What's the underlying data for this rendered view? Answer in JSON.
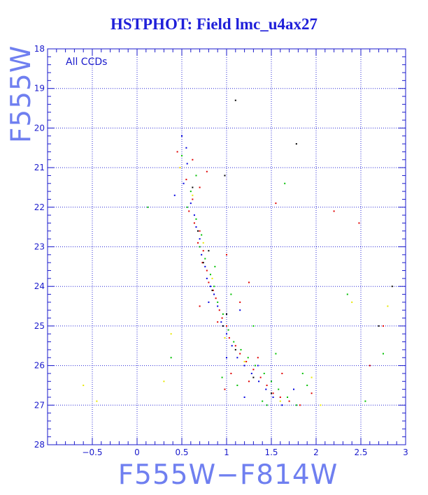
{
  "chart_data": {
    "type": "scatter",
    "title": "HSTPHOT: Field lmc_u4ax27",
    "xlabel": "F555W−F814W",
    "ylabel": "F555W",
    "annotation": "All CCDs",
    "xlim": [
      -1,
      3
    ],
    "ylim": [
      28,
      18
    ],
    "y_inverted": true,
    "grid": true,
    "x_ticks": [
      -0.5,
      0,
      0.5,
      1,
      1.5,
      2,
      2.5,
      3
    ],
    "x_tick_labels": [
      "−0.5",
      "0",
      "0.5",
      "1",
      "1.5",
      "2",
      "2.5",
      "3"
    ],
    "y_ticks": [
      18,
      19,
      20,
      21,
      22,
      23,
      24,
      25,
      26,
      27,
      28
    ],
    "y_tick_labels": [
      "18",
      "19",
      "20",
      "21",
      "22",
      "23",
      "24",
      "25",
      "26",
      "27",
      "28"
    ],
    "colors": {
      "grid": "#2a2ad6",
      "axis": "#1a1acc",
      "title": "#1f1fd9",
      "big_label": "#6f7ff0"
    },
    "series": [
      {
        "color": "#e00000",
        "points": [
          [
            0.45,
            20.6
          ],
          [
            0.62,
            20.8
          ],
          [
            0.78,
            21.1
          ],
          [
            0.55,
            21.3
          ],
          [
            0.7,
            21.5
          ],
          [
            0.62,
            21.8
          ],
          [
            0.58,
            22.1
          ],
          [
            0.64,
            22.4
          ],
          [
            0.7,
            22.6
          ],
          [
            0.68,
            22.9
          ],
          [
            0.74,
            23.1
          ],
          [
            0.73,
            23.4
          ],
          [
            0.78,
            23.6
          ],
          [
            0.8,
            23.9
          ],
          [
            0.85,
            24.1
          ],
          [
            0.88,
            24.3
          ],
          [
            0.92,
            24.6
          ],
          [
            0.95,
            24.8
          ],
          [
            1.0,
            25.0
          ],
          [
            1.03,
            25.3
          ],
          [
            1.1,
            25.5
          ],
          [
            1.15,
            25.7
          ],
          [
            1.22,
            25.9
          ],
          [
            1.3,
            26.1
          ],
          [
            1.38,
            26.3
          ],
          [
            1.45,
            26.5
          ],
          [
            1.52,
            26.7
          ],
          [
            1.6,
            26.8
          ],
          [
            1.7,
            26.9
          ],
          [
            1.82,
            27.0
          ],
          [
            1.25,
            26.4
          ],
          [
            1.05,
            26.2
          ],
          [
            0.98,
            26.6
          ],
          [
            1.35,
            25.8
          ],
          [
            0.9,
            24.9
          ],
          [
            1.15,
            24.4
          ],
          [
            1.25,
            23.9
          ],
          [
            1.0,
            23.2
          ],
          [
            2.2,
            22.1
          ],
          [
            2.48,
            22.4
          ],
          [
            1.55,
            21.9
          ],
          [
            2.75,
            25.0
          ],
          [
            2.6,
            26.0
          ],
          [
            0.48,
            21.0
          ],
          [
            0.7,
            24.5
          ],
          [
            1.62,
            26.2
          ],
          [
            1.95,
            26.7
          ]
        ]
      },
      {
        "color": "#00c000",
        "points": [
          [
            0.5,
            20.7
          ],
          [
            0.66,
            21.2
          ],
          [
            0.6,
            21.6
          ],
          [
            0.56,
            22.0
          ],
          [
            0.66,
            22.3
          ],
          [
            0.72,
            22.7
          ],
          [
            0.7,
            23.0
          ],
          [
            0.76,
            23.3
          ],
          [
            0.82,
            23.7
          ],
          [
            0.86,
            24.0
          ],
          [
            0.9,
            24.4
          ],
          [
            0.96,
            24.7
          ],
          [
            1.02,
            25.1
          ],
          [
            1.08,
            25.4
          ],
          [
            1.16,
            25.6
          ],
          [
            1.24,
            25.8
          ],
          [
            1.32,
            26.0
          ],
          [
            1.42,
            26.2
          ],
          [
            1.5,
            26.4
          ],
          [
            1.58,
            26.6
          ],
          [
            1.68,
            26.8
          ],
          [
            1.78,
            27.0
          ],
          [
            1.12,
            26.5
          ],
          [
            0.95,
            26.3
          ],
          [
            1.4,
            26.9
          ],
          [
            1.9,
            26.5
          ],
          [
            0.87,
            23.5
          ],
          [
            1.05,
            24.2
          ],
          [
            1.65,
            21.4
          ],
          [
            2.35,
            24.2
          ],
          [
            2.55,
            26.9
          ],
          [
            2.75,
            25.7
          ],
          [
            0.38,
            25.8
          ],
          [
            0.12,
            22.0
          ],
          [
            1.3,
            25.0
          ],
          [
            1.55,
            25.7
          ],
          [
            1.45,
            27.0
          ],
          [
            1.85,
            26.2
          ]
        ]
      },
      {
        "color": "#0000e0",
        "points": [
          [
            0.5,
            20.2
          ],
          [
            0.56,
            20.9
          ],
          [
            0.52,
            21.4
          ],
          [
            0.6,
            21.9
          ],
          [
            0.64,
            22.2
          ],
          [
            0.66,
            22.5
          ],
          [
            0.7,
            22.8
          ],
          [
            0.72,
            23.2
          ],
          [
            0.76,
            23.5
          ],
          [
            0.78,
            23.8
          ],
          [
            0.82,
            24.0
          ],
          [
            0.86,
            24.2
          ],
          [
            0.9,
            24.5
          ],
          [
            0.94,
            24.9
          ],
          [
            1.0,
            25.2
          ],
          [
            1.06,
            25.5
          ],
          [
            1.12,
            25.8
          ],
          [
            1.2,
            26.0
          ],
          [
            1.28,
            26.2
          ],
          [
            1.36,
            26.4
          ],
          [
            1.44,
            26.6
          ],
          [
            1.52,
            26.8
          ],
          [
            1.62,
            27.0
          ],
          [
            1.2,
            26.8
          ],
          [
            1.0,
            25.8
          ],
          [
            0.8,
            24.4
          ],
          [
            1.15,
            24.6
          ],
          [
            0.55,
            20.5
          ],
          [
            0.42,
            21.7
          ],
          [
            1.35,
            26.0
          ],
          [
            1.75,
            26.6
          ]
        ]
      },
      {
        "color": "#000000",
        "points": [
          [
            1.1,
            19.3
          ],
          [
            1.78,
            20.4
          ],
          [
            0.98,
            21.2
          ],
          [
            0.62,
            21.5
          ],
          [
            0.68,
            22.6
          ],
          [
            0.74,
            23.4
          ],
          [
            0.84,
            24.1
          ],
          [
            0.96,
            25.0
          ],
          [
            1.1,
            25.6
          ],
          [
            1.3,
            26.3
          ],
          [
            1.5,
            26.7
          ],
          [
            2.7,
            25.0
          ],
          [
            2.85,
            24.0
          ],
          [
            1.0,
            24.7
          ],
          [
            0.8,
            23.1
          ]
        ]
      },
      {
        "color": "#e8e800",
        "points": [
          [
            0.48,
            21.0
          ],
          [
            0.62,
            21.7
          ],
          [
            0.74,
            22.9
          ],
          [
            0.84,
            23.8
          ],
          [
            0.98,
            25.3
          ],
          [
            1.2,
            25.9
          ],
          [
            1.6,
            26.9
          ],
          [
            0.3,
            26.4
          ],
          [
            2.4,
            24.4
          ],
          [
            -0.45,
            26.9
          ],
          [
            2.05,
            27.0
          ],
          [
            2.8,
            24.5
          ],
          [
            1.95,
            26.3
          ],
          [
            0.38,
            25.2
          ],
          [
            -0.6,
            26.5
          ]
        ]
      }
    ]
  }
}
